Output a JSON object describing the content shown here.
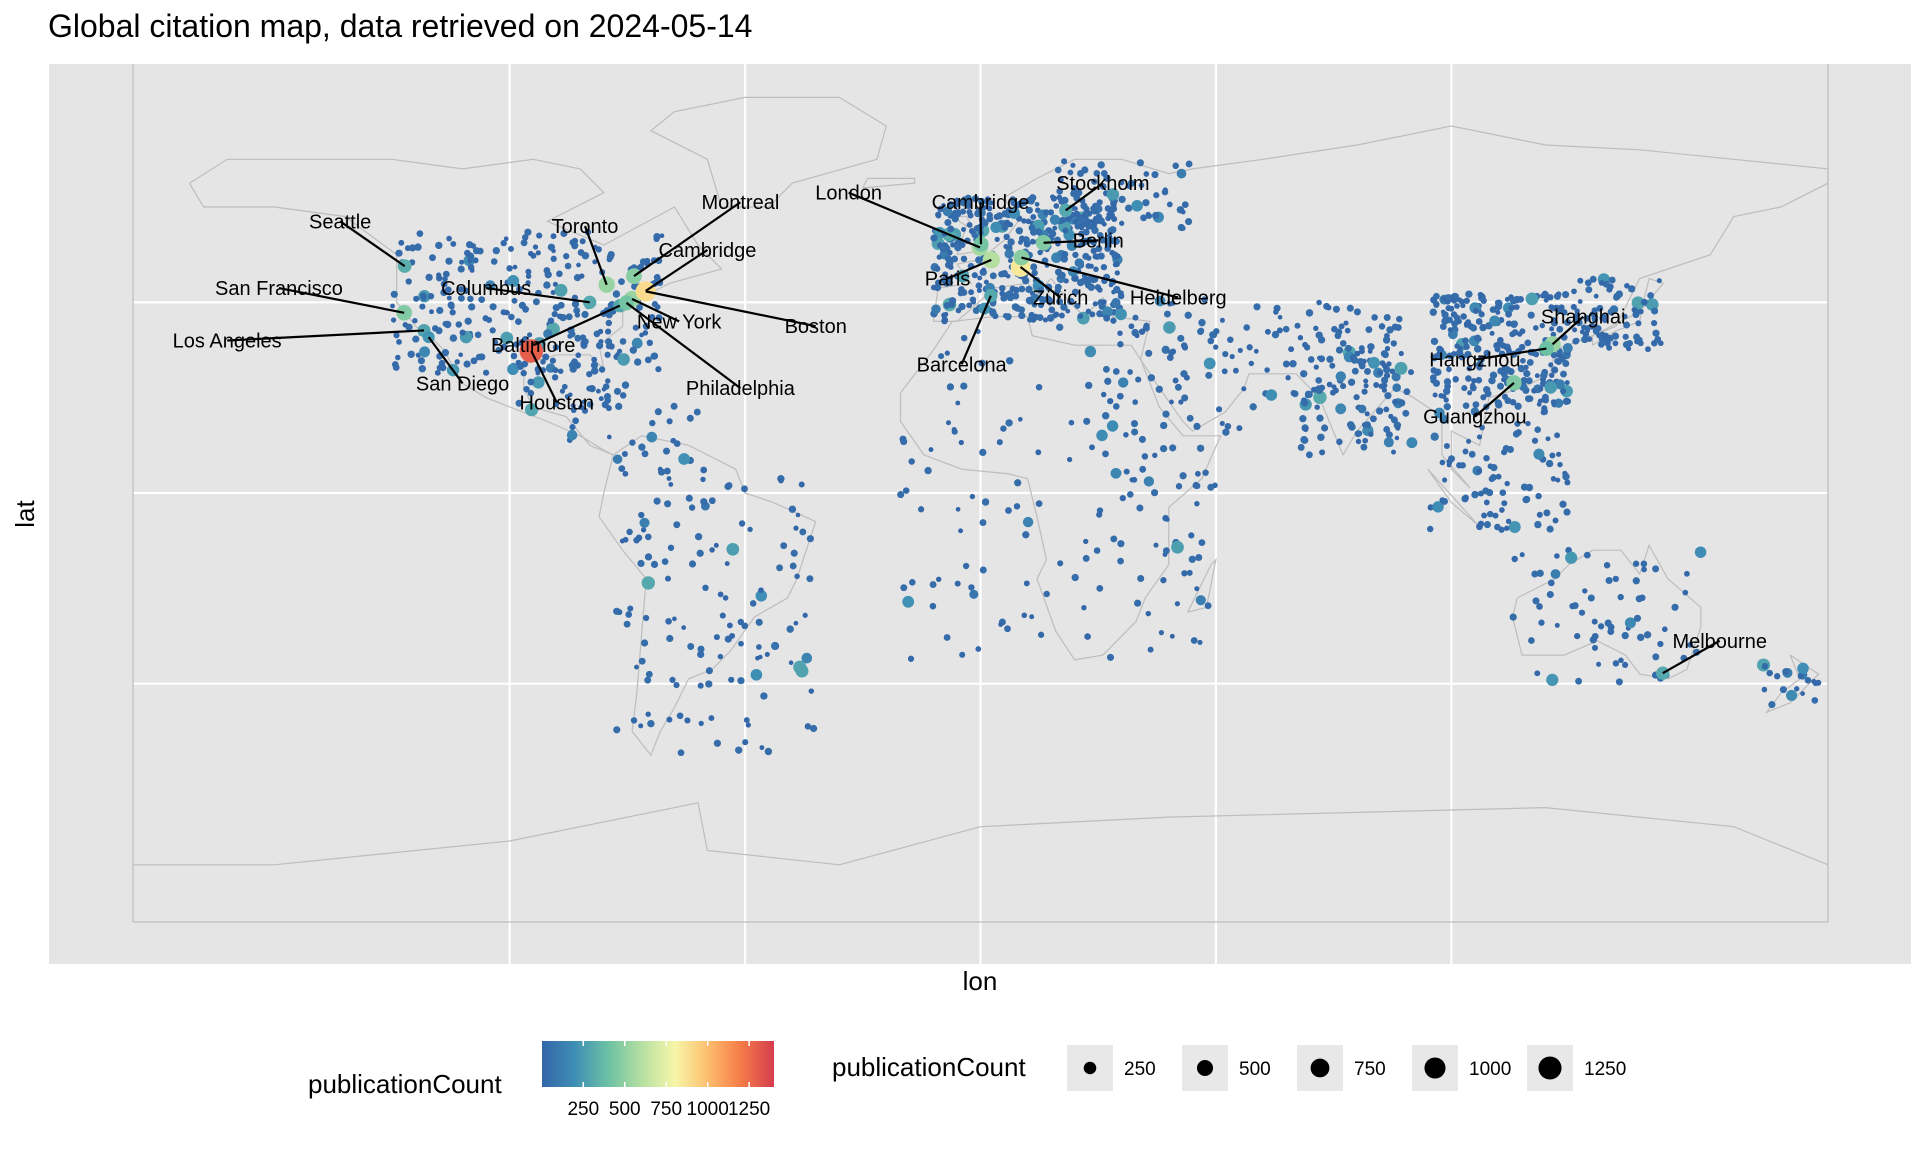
{
  "title": "Global citation map, data retrieved on 2024-05-14",
  "axes": {
    "x_title": "lon",
    "y_title": "lat"
  },
  "map": {
    "grid_lon": [
      -100,
      -50,
      0,
      50,
      100
    ],
    "grid_lat": [
      -40,
      0,
      40
    ],
    "lon_range": [
      -180,
      180
    ],
    "lat_range": [
      -90,
      90
    ],
    "panel_background": "#e5e5e5",
    "border_color": "#bdbdbd"
  },
  "color_scale": {
    "title": "publicationCount",
    "stops": [
      "#3366a8",
      "#3f8fb5",
      "#6cc1a4",
      "#b5dfa1",
      "#f7f6a9",
      "#fdbe6e",
      "#f57b48",
      "#d53e4f"
    ],
    "ticks": [
      "250",
      "500",
      "750",
      "1000",
      "1250"
    ],
    "tick_values": [
      250,
      500,
      750,
      1000,
      1250
    ],
    "range": [
      1,
      1400
    ]
  },
  "size_scale": {
    "title": "publicationCount",
    "items": [
      {
        "label": "250",
        "value": 250
      },
      {
        "label": "500",
        "value": 500
      },
      {
        "label": "750",
        "value": 750
      },
      {
        "label": "1000",
        "value": 1000
      },
      {
        "label": "1250",
        "value": 1250
      }
    ]
  },
  "cities": [
    {
      "name": "Seattle",
      "lon": -122.3,
      "lat": 47.6,
      "count": 320,
      "label_lon": -136,
      "label_lat": 57
    },
    {
      "name": "San Francisco",
      "lon": -122.4,
      "lat": 37.8,
      "count": 460,
      "label_lon": -149,
      "label_lat": 43
    },
    {
      "name": "Los Angeles",
      "lon": -118.2,
      "lat": 34.1,
      "count": 280,
      "label_lon": -160,
      "label_lat": 32
    },
    {
      "name": "San Diego",
      "lon": -117.2,
      "lat": 32.7,
      "count": 220,
      "label_lon": -110,
      "label_lat": 23
    },
    {
      "name": "Houston",
      "lon": -95.4,
      "lat": 29.8,
      "count": 1300,
      "label_lon": -90,
      "label_lat": 19
    },
    {
      "name": "Toronto",
      "lon": -79.4,
      "lat": 43.7,
      "count": 520,
      "label_lon": -84,
      "label_lat": 56
    },
    {
      "name": "Columbus",
      "lon": -83.0,
      "lat": 40.0,
      "count": 300,
      "label_lon": -105,
      "label_lat": 43
    },
    {
      "name": "Baltimore",
      "lon": -76.6,
      "lat": 39.3,
      "count": 300,
      "label_lon": -95,
      "label_lat": 31
    },
    {
      "name": "Montreal",
      "lon": -73.6,
      "lat": 45.5,
      "count": 480,
      "label_lon": -51,
      "label_lat": 61
    },
    {
      "name": "Cambridge",
      "lon": -71.1,
      "lat": 42.4,
      "count": 380,
      "label_lon": -58,
      "label_lat": 51
    },
    {
      "name": "New York",
      "lon": -74.0,
      "lat": 40.7,
      "count": 520,
      "label_lon": -64,
      "label_lat": 36
    },
    {
      "name": "Philadelphia",
      "lon": -75.2,
      "lat": 39.9,
      "count": 420,
      "label_lon": -51,
      "label_lat": 22
    },
    {
      "name": "Boston",
      "lon": -71.1,
      "lat": 42.3,
      "count": 900,
      "label_lon": -35,
      "label_lat": 35
    },
    {
      "name": "London",
      "lon": -0.1,
      "lat": 51.5,
      "count": 560,
      "label_lon": -28,
      "label_lat": 63
    },
    {
      "name": "Cambridge",
      "lon": 0.1,
      "lat": 52.2,
      "count": 420,
      "label_lon": 0,
      "label_lat": 61
    },
    {
      "name": "Paris",
      "lon": 2.3,
      "lat": 48.9,
      "count": 600,
      "label_lon": -7,
      "label_lat": 45
    },
    {
      "name": "Barcelona",
      "lon": 2.2,
      "lat": 41.4,
      "count": 300,
      "label_lon": -4,
      "label_lat": 27
    },
    {
      "name": "Stockholm",
      "lon": 18.1,
      "lat": 59.3,
      "count": 300,
      "label_lon": 26,
      "label_lat": 65
    },
    {
      "name": "Berlin",
      "lon": 13.4,
      "lat": 52.5,
      "count": 460,
      "label_lon": 25,
      "label_lat": 53
    },
    {
      "name": "Zürich",
      "lon": 8.5,
      "lat": 47.4,
      "count": 850,
      "label_lon": 17,
      "label_lat": 41
    },
    {
      "name": "Heidelberg",
      "lon": 8.7,
      "lat": 49.4,
      "count": 480,
      "label_lon": 42,
      "label_lat": 41
    },
    {
      "name": "Shanghai",
      "lon": 121.5,
      "lat": 31.2,
      "count": 520,
      "label_lon": 128,
      "label_lat": 37
    },
    {
      "name": "Hangzhou",
      "lon": 120.2,
      "lat": 30.3,
      "count": 400,
      "label_lon": 105,
      "label_lat": 28
    },
    {
      "name": "Guangzhou",
      "lon": 113.3,
      "lat": 23.1,
      "count": 450,
      "label_lon": 105,
      "label_lat": 16
    },
    {
      "name": "Melbourne",
      "lon": 144.9,
      "lat": -37.8,
      "count": 300,
      "label_lon": 157,
      "label_lat": -31
    }
  ]
}
